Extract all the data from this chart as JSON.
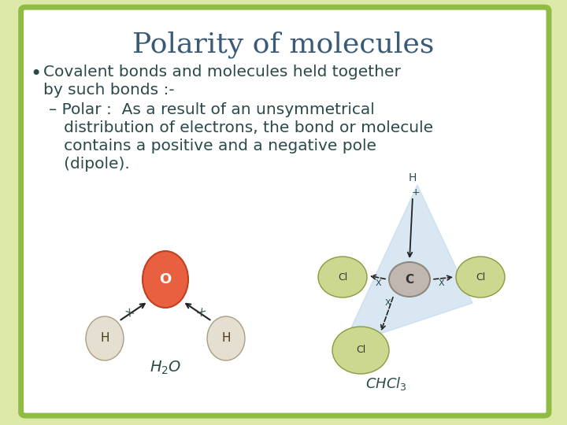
{
  "title": "Polarity of molecules",
  "title_fontsize": 26,
  "title_color": "#3a5a7a",
  "bg_outer": "#dce9a8",
  "bg_slide": "#ffffff",
  "border_color": "#90bb45",
  "bullet_text_line1": "Covalent bonds and molecules held together",
  "bullet_text_line2": "by such bonds :-",
  "sub_bullet_line1": "– Polar :  As a result of an unsymmetrical",
  "sub_bullet_line2": "   distribution of electrons, the bond or molecule",
  "sub_bullet_line3": "   contains a positive and a negative pole",
  "sub_bullet_line4": "   (dipole).",
  "text_color": "#2a4a4a",
  "text_fontsize": 14.5,
  "h2o_label": "$H_2O$",
  "chcl3_label": "$CHCl_3$",
  "o_color": "#e86040",
  "o_edge": "#c04020",
  "h_color": "#e0dac8",
  "h_edge": "#a09070",
  "c_color": "#c0b8b0",
  "c_edge": "#908880",
  "cl_color": "#ccd890",
  "cl_edge": "#8a9a40",
  "cone_color": "#b8d4e8",
  "arrow_color": "#222222"
}
